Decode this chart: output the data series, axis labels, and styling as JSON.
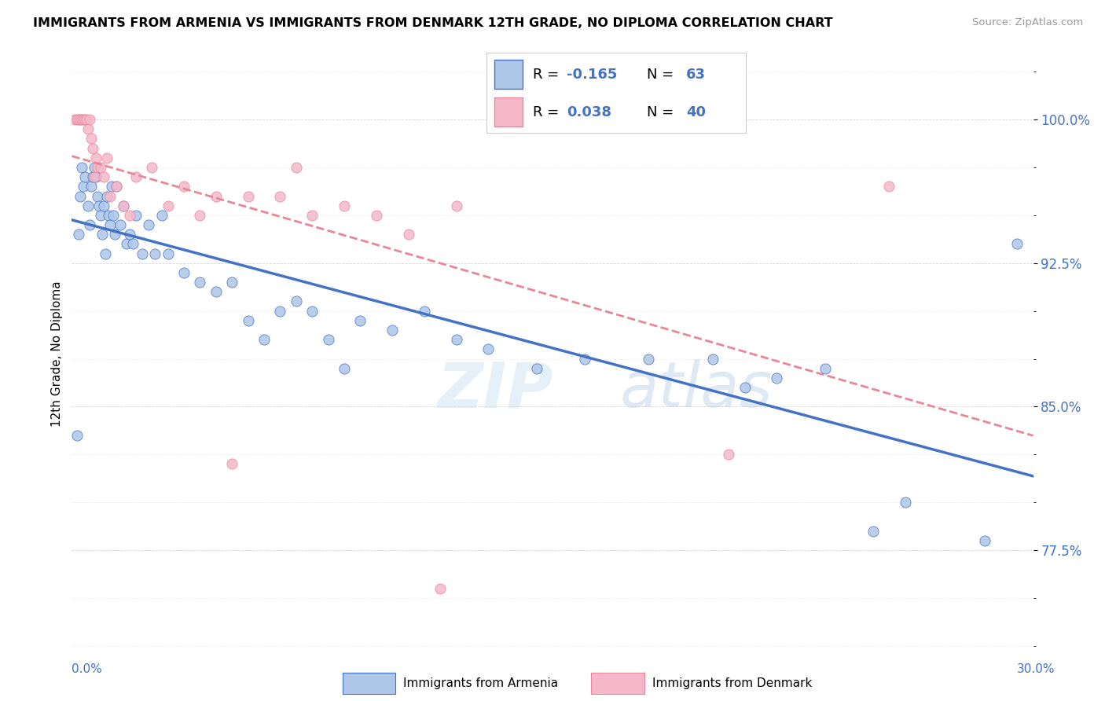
{
  "title": "IMMIGRANTS FROM ARMENIA VS IMMIGRANTS FROM DENMARK 12TH GRADE, NO DIPLOMA CORRELATION CHART",
  "source": "Source: ZipAtlas.com",
  "ylabel": "12th Grade, No Diploma",
  "xlim": [
    0.0,
    30.0
  ],
  "ylim": [
    72.0,
    103.5
  ],
  "watermark_zip": "ZIP",
  "watermark_atlas": "atlas",
  "color_armenia": "#aec6e8",
  "color_denmark": "#f4b8ca",
  "line_color_armenia": "#4472c4",
  "line_color_denmark": "#e8869a",
  "ytick_vals": [
    77.5,
    85.0,
    92.5,
    100.0
  ],
  "armenia_x": [
    0.15,
    0.2,
    0.25,
    0.3,
    0.35,
    0.4,
    0.5,
    0.55,
    0.6,
    0.65,
    0.7,
    0.75,
    0.8,
    0.85,
    0.9,
    0.95,
    1.0,
    1.05,
    1.1,
    1.15,
    1.2,
    1.25,
    1.3,
    1.35,
    1.4,
    1.5,
    1.6,
    1.7,
    1.8,
    1.9,
    2.0,
    2.2,
    2.4,
    2.6,
    2.8,
    3.0,
    3.5,
    4.0,
    4.5,
    5.0,
    5.5,
    6.0,
    6.5,
    7.0,
    7.5,
    8.0,
    8.5,
    9.0,
    10.0,
    11.0,
    12.0,
    13.0,
    14.5,
    16.0,
    18.0,
    20.0,
    21.0,
    22.0,
    23.5,
    25.0,
    26.0,
    28.5,
    29.5
  ],
  "armenia_y": [
    83.5,
    94.0,
    96.0,
    97.5,
    96.5,
    97.0,
    95.5,
    94.5,
    96.5,
    97.0,
    97.5,
    97.0,
    96.0,
    95.5,
    95.0,
    94.0,
    95.5,
    93.0,
    96.0,
    95.0,
    94.5,
    96.5,
    95.0,
    94.0,
    96.5,
    94.5,
    95.5,
    93.5,
    94.0,
    93.5,
    95.0,
    93.0,
    94.5,
    93.0,
    95.0,
    93.0,
    92.0,
    91.5,
    91.0,
    91.5,
    89.5,
    88.5,
    90.0,
    90.5,
    90.0,
    88.5,
    87.0,
    89.5,
    89.0,
    90.0,
    88.5,
    88.0,
    87.0,
    87.5,
    87.5,
    87.5,
    86.0,
    86.5,
    87.0,
    78.5,
    80.0,
    78.0,
    93.5
  ],
  "denmark_x": [
    0.1,
    0.15,
    0.2,
    0.25,
    0.3,
    0.35,
    0.4,
    0.45,
    0.5,
    0.55,
    0.6,
    0.65,
    0.7,
    0.75,
    0.8,
    0.9,
    1.0,
    1.1,
    1.2,
    1.4,
    1.6,
    1.8,
    2.0,
    2.5,
    3.0,
    3.5,
    4.0,
    4.5,
    5.0,
    5.5,
    6.5,
    7.0,
    7.5,
    8.5,
    9.5,
    10.5,
    11.5,
    12.0,
    20.5,
    25.5
  ],
  "denmark_y": [
    100.0,
    100.0,
    100.0,
    100.0,
    100.0,
    100.0,
    100.0,
    100.0,
    99.5,
    100.0,
    99.0,
    98.5,
    97.0,
    98.0,
    97.5,
    97.5,
    97.0,
    98.0,
    96.0,
    96.5,
    95.5,
    95.0,
    97.0,
    97.5,
    95.5,
    96.5,
    95.0,
    96.0,
    82.0,
    96.0,
    96.0,
    97.5,
    95.0,
    95.5,
    95.0,
    94.0,
    75.5,
    95.5,
    82.5,
    96.5
  ]
}
